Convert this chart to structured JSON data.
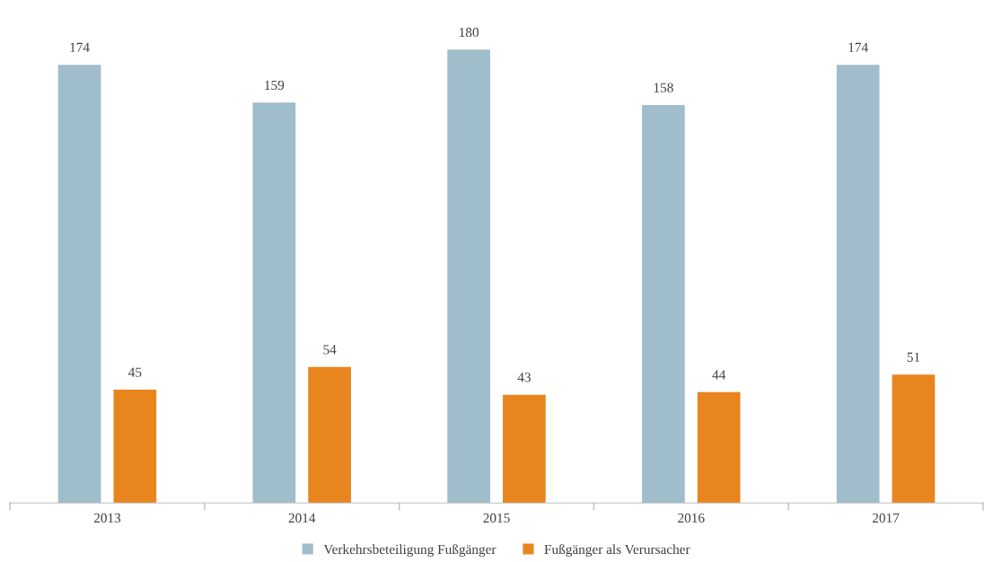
{
  "chart_data": {
    "type": "bar",
    "categories": [
      "2013",
      "2014",
      "2015",
      "2016",
      "2017"
    ],
    "series": [
      {
        "name": "Verkehrsbeteiligung Fußgänger",
        "color": "#9fbdca",
        "values": [
          174,
          159,
          180,
          158,
          174
        ]
      },
      {
        "name": "Fußgänger als Verursacher",
        "color": "#e9851f",
        "values": [
          45,
          54,
          43,
          44,
          51
        ]
      }
    ],
    "data_labels": true,
    "legend": "bottom",
    "grid": false
  }
}
